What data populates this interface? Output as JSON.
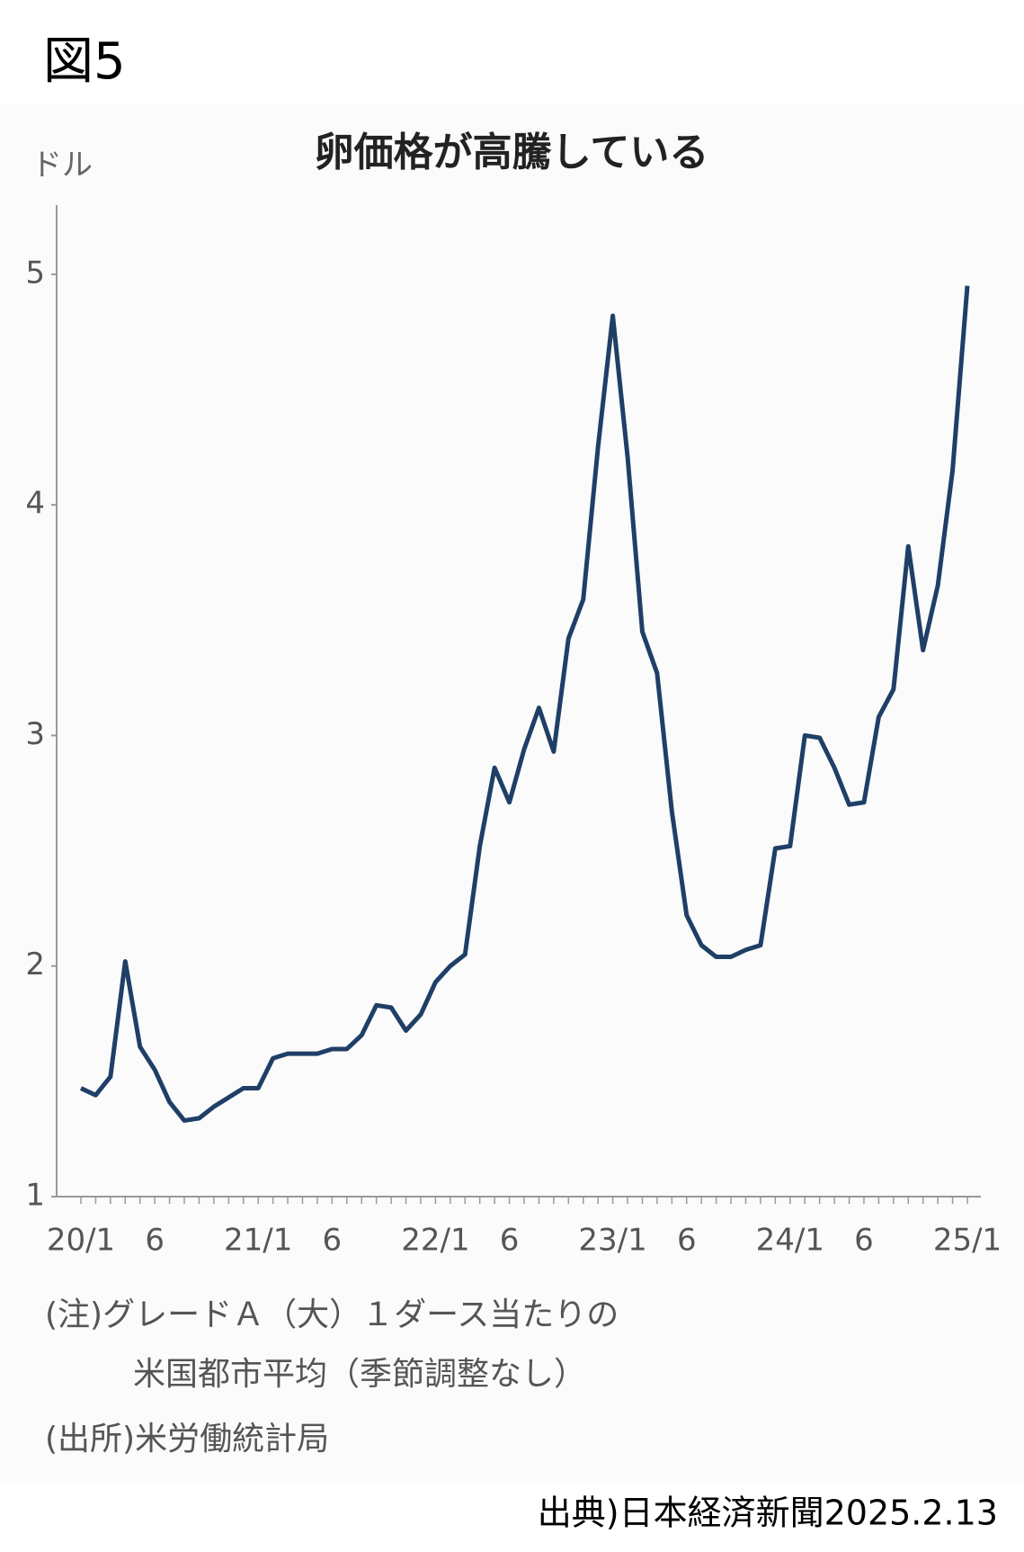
{
  "figure_label": "図5",
  "chart_data": {
    "type": "line",
    "title": "卵価格が高騰している",
    "y_label": "ドル",
    "categories": [
      "20/1",
      null,
      null,
      null,
      null,
      "6",
      null,
      null,
      null,
      null,
      null,
      null,
      "21/1",
      null,
      null,
      null,
      null,
      "6",
      null,
      null,
      null,
      null,
      null,
      null,
      "22/1",
      null,
      null,
      null,
      null,
      "6",
      null,
      null,
      null,
      null,
      null,
      null,
      "23/1",
      null,
      null,
      null,
      null,
      "6",
      null,
      null,
      null,
      null,
      null,
      null,
      "24/1",
      null,
      null,
      null,
      null,
      "6",
      null,
      null,
      null,
      null,
      null,
      null,
      "25/1"
    ],
    "series": [
      {
        "name": "卵価格",
        "color": "#1f3f66",
        "values": [
          1.47,
          1.44,
          1.52,
          2.02,
          1.65,
          1.55,
          1.41,
          1.33,
          1.34,
          1.39,
          1.43,
          1.47,
          1.47,
          1.6,
          1.62,
          1.62,
          1.62,
          1.64,
          1.64,
          1.7,
          1.83,
          1.82,
          1.72,
          1.79,
          1.93,
          2.0,
          2.05,
          2.52,
          2.86,
          2.71,
          2.94,
          3.12,
          2.93,
          3.42,
          3.59,
          4.25,
          4.82,
          4.21,
          3.45,
          3.27,
          2.67,
          2.22,
          2.09,
          2.04,
          2.04,
          2.07,
          2.09,
          2.51,
          2.52,
          3.0,
          2.99,
          2.86,
          2.7,
          2.71,
          3.08,
          3.2,
          3.82,
          3.37,
          3.65,
          4.15,
          4.95
        ]
      }
    ],
    "ylim": [
      1,
      5.3
    ],
    "yticks": [
      1,
      2,
      3,
      4,
      5
    ],
    "grid": false,
    "notes": [
      "(注)グレードＡ（大）１ダース当たりの",
      "米国都市平均（季節調整なし）",
      "(出所)米労働統計局"
    ]
  },
  "source": "出典)日本経済新聞2025.2.13"
}
